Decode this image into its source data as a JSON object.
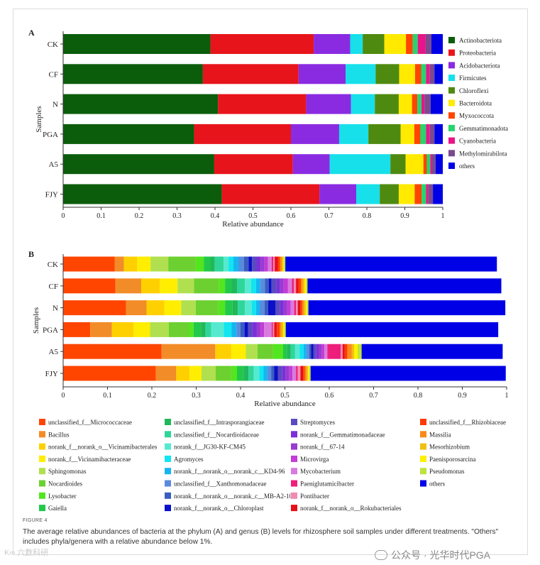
{
  "chart_data": [
    {
      "type": "bar",
      "orientation": "horizontal",
      "stacked": true,
      "panel": "A",
      "xlabel": "Relative abundance",
      "ylabel": "Samples",
      "xlim": [
        0,
        1
      ],
      "xticks": [
        "0",
        "0.1",
        "0.2",
        "0.3",
        "0.4",
        "0.5",
        "0.6",
        "0.7",
        "0.8",
        "0.9",
        "1"
      ],
      "legend_position": "right",
      "categories": [
        "CK",
        "CF",
        "N",
        "PGA",
        "A5",
        "FJY"
      ],
      "series": [
        {
          "name": "Actinobacteriota",
          "color": "#0b5d0b",
          "values": [
            0.388,
            0.368,
            0.408,
            0.345,
            0.398,
            0.418
          ]
        },
        {
          "name": "Proteobacteria",
          "color": "#e8141c",
          "values": [
            0.272,
            0.252,
            0.232,
            0.255,
            0.207,
            0.257
          ]
        },
        {
          "name": "Acidobacteriota",
          "color": "#8a2be2",
          "values": [
            0.096,
            0.124,
            0.118,
            0.127,
            0.097,
            0.097
          ]
        },
        {
          "name": "Firmicutes",
          "color": "#17e0ea",
          "values": [
            0.033,
            0.079,
            0.063,
            0.077,
            0.16,
            0.062
          ]
        },
        {
          "name": "Chloroflexi",
          "color": "#4f8a10",
          "values": [
            0.057,
            0.062,
            0.063,
            0.085,
            0.04,
            0.05
          ]
        },
        {
          "name": "Bacteroidota",
          "color": "#ffea00",
          "values": [
            0.057,
            0.042,
            0.035,
            0.036,
            0.047,
            0.042
          ]
        },
        {
          "name": "Myxococcota",
          "color": "#ff4500",
          "values": [
            0.018,
            0.016,
            0.014,
            0.016,
            0.009,
            0.018
          ]
        },
        {
          "name": "Gemmatimonadota",
          "color": "#28d46e",
          "values": [
            0.013,
            0.013,
            0.011,
            0.015,
            0.009,
            0.012
          ]
        },
        {
          "name": "Cyanobacteria",
          "color": "#e8158a",
          "values": [
            0.021,
            0.01,
            0.008,
            0.01,
            0.004,
            0.006
          ]
        },
        {
          "name": "Methylomirabilota",
          "color": "#7a4a8f",
          "values": [
            0.015,
            0.012,
            0.016,
            0.012,
            0.01,
            0.012
          ]
        },
        {
          "name": "others",
          "color": "#0000e6",
          "values": [
            0.03,
            0.022,
            0.032,
            0.022,
            0.019,
            0.026
          ]
        }
      ]
    },
    {
      "type": "bar",
      "orientation": "horizontal",
      "stacked": true,
      "panel": "B",
      "xlabel": "Relative abundance",
      "ylabel": "Samples",
      "xlim": [
        0,
        1
      ],
      "xticks": [
        "0",
        "0.1",
        "0.2",
        "0.3",
        "0.4",
        "0.5",
        "0.6",
        "0.7",
        "0.8",
        "0.9",
        "1"
      ],
      "legend_position": "bottom",
      "categories": [
        "CK",
        "CF",
        "N",
        "PGA",
        "A5",
        "FJY"
      ],
      "series": [
        {
          "name": "unclassified_f__Micrococcaceae",
          "color": "#ff4500",
          "values": [
            0.116,
            0.118,
            0.142,
            0.061,
            0.222,
            0.209
          ]
        },
        {
          "name": "Bacillus",
          "color": "#f28c28",
          "values": [
            0.021,
            0.058,
            0.046,
            0.049,
            0.121,
            0.046
          ]
        },
        {
          "name": "norank_f__norank_o__Vicinamibacterales",
          "color": "#ffd000",
          "values": [
            0.03,
            0.042,
            0.04,
            0.049,
            0.036,
            0.03
          ]
        },
        {
          "name": "norank_f__Vicinamibacteraceae",
          "color": "#ffee00",
          "values": [
            0.03,
            0.04,
            0.038,
            0.037,
            0.033,
            0.027
          ]
        },
        {
          "name": "Sphingomonas",
          "color": "#b0e050",
          "values": [
            0.04,
            0.037,
            0.033,
            0.042,
            0.026,
            0.032
          ]
        },
        {
          "name": "Nocardioides",
          "color": "#6cd030",
          "values": [
            0.062,
            0.056,
            0.051,
            0.046,
            0.035,
            0.035
          ]
        },
        {
          "name": "Lysobacter",
          "color": "#52e61e",
          "values": [
            0.018,
            0.014,
            0.015,
            0.01,
            0.023,
            0.013
          ]
        },
        {
          "name": "Gaiella",
          "color": "#22c84a",
          "values": [
            0.015,
            0.015,
            0.017,
            0.017,
            0.009,
            0.015
          ]
        },
        {
          "name": "unclassified_f__Intrasporangiaceae",
          "color": "#20b85a",
          "values": [
            0.01,
            0.012,
            0.012,
            0.01,
            0.008,
            0.011
          ]
        },
        {
          "name": "unclassified_f__Nocardioidaceae",
          "color": "#2ed69a",
          "values": [
            0.02,
            0.018,
            0.016,
            0.013,
            0.01,
            0.012
          ]
        },
        {
          "name": "norank_f__JG30-KF-CM45",
          "color": "#55ead0",
          "values": [
            0.011,
            0.014,
            0.015,
            0.028,
            0.01,
            0.012
          ]
        },
        {
          "name": "Agromyces",
          "color": "#10e5f0",
          "values": [
            0.011,
            0.011,
            0.01,
            0.018,
            0.009,
            0.01
          ]
        },
        {
          "name": "norank_f__norank_o__norank_c__KD4-96",
          "color": "#17b5f0",
          "values": [
            0.012,
            0.01,
            0.009,
            0.011,
            0.007,
            0.009
          ]
        },
        {
          "name": "unclassified_f__Xanthomonadaceae",
          "color": "#5a8adc",
          "values": [
            0.012,
            0.01,
            0.01,
            0.009,
            0.006,
            0.008
          ]
        },
        {
          "name": "norank_f__norank_o__norank_c__MB-A2-108",
          "color": "#3a5cc0",
          "values": [
            0.01,
            0.009,
            0.008,
            0.009,
            0.004,
            0.007
          ]
        },
        {
          "name": "norank_f__norank_o__Chloroplast",
          "color": "#0a10c8",
          "values": [
            0.008,
            0.006,
            0.017,
            0.008,
            0.005,
            0.008
          ]
        },
        {
          "name": "Streptomyces",
          "color": "#5a4ac0",
          "values": [
            0.01,
            0.011,
            0.01,
            0.01,
            0.006,
            0.01
          ]
        },
        {
          "name": "norank_f__Gemmatimonadaceae",
          "color": "#7a30d8",
          "values": [
            0.009,
            0.008,
            0.008,
            0.009,
            0.006,
            0.008
          ]
        },
        {
          "name": "norank_f__67-14",
          "color": "#9a3ad0",
          "values": [
            0.009,
            0.008,
            0.008,
            0.009,
            0.007,
            0.008
          ]
        },
        {
          "name": "Microvirga",
          "color": "#c23cd6",
          "values": [
            0.008,
            0.01,
            0.008,
            0.008,
            0.006,
            0.007
          ]
        },
        {
          "name": "Mycobacterium",
          "color": "#d87ae0",
          "values": [
            0.008,
            0.009,
            0.008,
            0.017,
            0.007,
            0.008
          ]
        },
        {
          "name": "Paeniglutamicibacter",
          "color": "#ee1f7a",
          "values": [
            0.004,
            0.004,
            0.004,
            0.003,
            0.03,
            0.004
          ]
        },
        {
          "name": "Pontibacter",
          "color": "#f28ab4",
          "values": [
            0.003,
            0.005,
            0.004,
            0.003,
            0.004,
            0.006
          ]
        },
        {
          "name": "norank_f__norank_o__Rokubacteriales",
          "color": "#e5101a",
          "values": [
            0.007,
            0.006,
            0.006,
            0.006,
            0.005,
            0.006
          ]
        },
        {
          "name": "unclassified_f__Rhizobiaceae",
          "color": "#ff3a00",
          "values": [
            0.005,
            0.005,
            0.004,
            0.006,
            0.006,
            0.004
          ]
        },
        {
          "name": "Massilia",
          "color": "#f88a18",
          "values": [
            0.004,
            0.004,
            0.004,
            0.004,
            0.01,
            0.004
          ]
        },
        {
          "name": "Mesorhizobium",
          "color": "#f0c010",
          "values": [
            0.003,
            0.004,
            0.004,
            0.004,
            0.005,
            0.003
          ]
        },
        {
          "name": "Paenisporosarcina",
          "color": "#fff000",
          "values": [
            0.002,
            0.004,
            0.003,
            0.003,
            0.008,
            0.003
          ]
        },
        {
          "name": "Pseudomonas",
          "color": "#bde33c",
          "values": [
            0.003,
            0.003,
            0.003,
            0.003,
            0.009,
            0.003
          ]
        },
        {
          "name": "others",
          "color": "#0000e6",
          "values": [
            0.477,
            0.437,
            0.444,
            0.479,
            0.318,
            0.44
          ]
        }
      ]
    }
  ],
  "caption": {
    "label": "FIGURE 4",
    "text": "The average relative abundances of bacteria at the phylum (A) and genus (B) levels for rhizosphere soil samples under different treatments. \"Others\" includes phyla/genera with a relative abundance below 1%."
  },
  "watermark_left": "K∞ 六数科研",
  "watermark_right": "公众号 · 光华时代PGA"
}
